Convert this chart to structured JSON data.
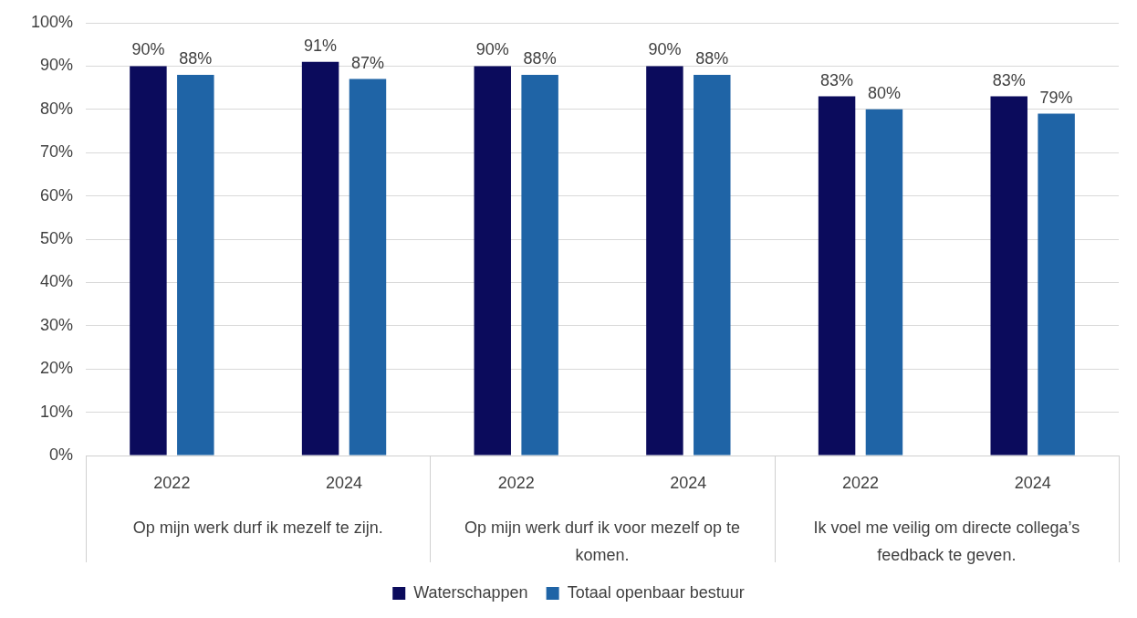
{
  "chart_data": {
    "type": "bar",
    "categories": [
      "2022",
      "2024",
      "2022",
      "2024",
      "2022",
      "2024"
    ],
    "series": [
      {
        "name": "Waterschappen",
        "color": "#0b0b5c",
        "values": [
          90,
          91,
          90,
          90,
          83,
          83
        ],
        "value_labels": [
          "90%",
          "91%",
          "90%",
          "90%",
          "83%",
          "83%"
        ]
      },
      {
        "name": "Totaal openbaar bestuur",
        "color": "#1f64a6",
        "values": [
          88,
          87,
          88,
          88,
          80,
          79
        ],
        "value_labels": [
          "88%",
          "87%",
          "88%",
          "88%",
          "80%",
          "79%"
        ]
      }
    ],
    "ylim": [
      0,
      100
    ],
    "yticks": [
      {
        "value": 0,
        "label": "0%"
      },
      {
        "value": 10,
        "label": "10%"
      },
      {
        "value": 20,
        "label": "20%"
      },
      {
        "value": 30,
        "label": "30%"
      },
      {
        "value": 40,
        "label": "40%"
      },
      {
        "value": 50,
        "label": "50%"
      },
      {
        "value": 60,
        "label": "60%"
      },
      {
        "value": 70,
        "label": "70%"
      },
      {
        "value": 80,
        "label": "80%"
      },
      {
        "value": 90,
        "label": "90%"
      },
      {
        "value": 100,
        "label": "100%"
      }
    ],
    "annotations": [
      "Op mijn werk durf ik mezelf te zijn.",
      "Op mijn werk durf ik voor mezelf op te komen.",
      "Ik voel me veilig om directe collega’s feedback te geven."
    ],
    "grid": "y",
    "legend": "bottom"
  }
}
